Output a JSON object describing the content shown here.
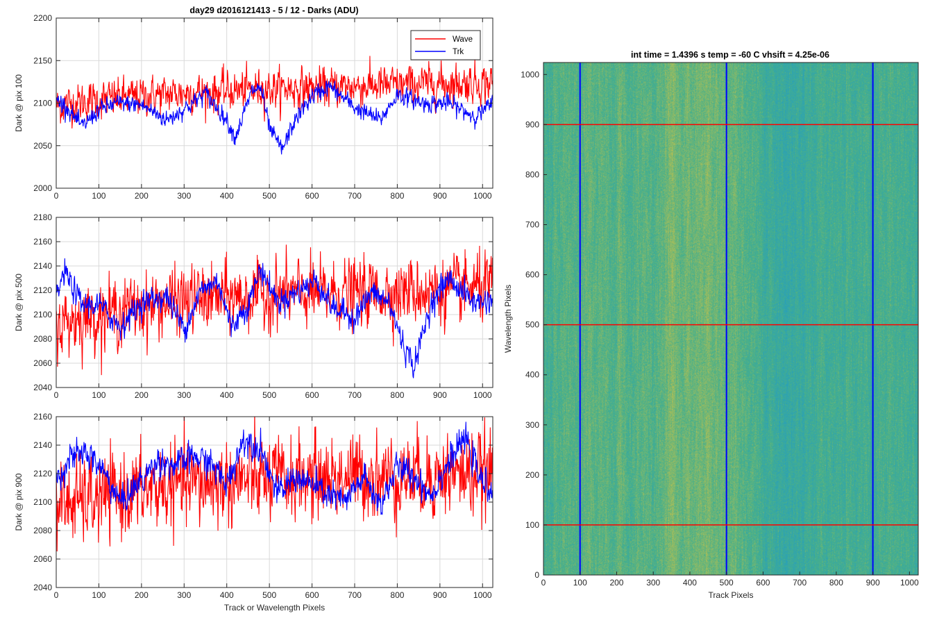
{
  "figure": {
    "title": "day29 d2016121413 - 5 / 12 - Darks (ADU)",
    "heatmap_title": "int time = 1.4396 s    temp = -60 C    vhsift = 4.25e-06"
  },
  "colors": {
    "wave": "#ff0000",
    "trk": "#0000ff",
    "grid": "#d9d9d9",
    "heat_low": "#1f9bc8",
    "heat_mid": "#48b08a",
    "heat_high": "#c6c24a"
  },
  "chart_data": [
    {
      "type": "line",
      "id": "pix100",
      "ylabel": "Dark @ pix 100",
      "xlabel": "",
      "xlim": [
        0,
        1024
      ],
      "ylim": [
        2000,
        2200
      ],
      "yticks": [
        2000,
        2050,
        2100,
        2150,
        2200
      ],
      "xticks": [
        0,
        100,
        200,
        300,
        400,
        500,
        600,
        700,
        800,
        900,
        1000
      ],
      "legend": {
        "placement": "top-right",
        "entries": [
          "Wave",
          "Trk"
        ]
      },
      "series": [
        {
          "name": "Wave",
          "color": "#ff0000",
          "x": [
            0,
            100,
            200,
            300,
            400,
            500,
            600,
            700,
            800,
            900,
            1000,
            1024
          ],
          "mean": [
            2097,
            2104,
            2108,
            2112,
            2114,
            2117,
            2118,
            2120,
            2121,
            2123,
            2124,
            2124
          ],
          "noise": 11,
          "samples": 1024
        },
        {
          "name": "Trk",
          "color": "#0000ff",
          "x": [
            0,
            20,
            60,
            100,
            140,
            200,
            260,
            320,
            350,
            400,
            420,
            460,
            480,
            500,
            530,
            560,
            600,
            640,
            700,
            760,
            800,
            860,
            920,
            980,
            1000,
            1024
          ],
          "mean": [
            2104,
            2098,
            2072,
            2092,
            2100,
            2098,
            2080,
            2100,
            2112,
            2080,
            2060,
            2115,
            2118,
            2070,
            2045,
            2080,
            2108,
            2120,
            2095,
            2080,
            2110,
            2100,
            2100,
            2085,
            2090,
            2100
          ],
          "noise": 5,
          "samples": 1024
        }
      ]
    },
    {
      "type": "line",
      "id": "pix500",
      "ylabel": "Dark @ pix 500",
      "xlabel": "",
      "xlim": [
        0,
        1024
      ],
      "ylim": [
        2040,
        2180
      ],
      "yticks": [
        2040,
        2060,
        2080,
        2100,
        2120,
        2140,
        2160,
        2180
      ],
      "xticks": [
        0,
        100,
        200,
        300,
        400,
        500,
        600,
        700,
        800,
        900,
        1000
      ],
      "series": [
        {
          "name": "Wave",
          "color": "#ff0000",
          "x": [
            0,
            100,
            200,
            300,
            400,
            500,
            600,
            700,
            800,
            900,
            1000,
            1024
          ],
          "mean": [
            2092,
            2100,
            2106,
            2112,
            2114,
            2116,
            2117,
            2118,
            2119,
            2120,
            2122,
            2122
          ],
          "noise": 13,
          "samples": 1024
        },
        {
          "name": "Trk",
          "color": "#0000ff",
          "x": [
            0,
            20,
            60,
            100,
            150,
            200,
            260,
            300,
            340,
            380,
            410,
            450,
            480,
            520,
            560,
            610,
            650,
            700,
            740,
            780,
            820,
            840,
            880,
            920,
            980,
            1024
          ],
          "mean": [
            2115,
            2135,
            2108,
            2108,
            2090,
            2110,
            2115,
            2088,
            2120,
            2128,
            2090,
            2108,
            2138,
            2110,
            2118,
            2128,
            2105,
            2098,
            2118,
            2110,
            2070,
            2058,
            2110,
            2130,
            2110,
            2112
          ],
          "noise": 5,
          "samples": 1024
        }
      ]
    },
    {
      "type": "line",
      "id": "pix900",
      "ylabel": "Dark @ pix 900",
      "xlabel": "Track or Wavelength Pixels",
      "xlim": [
        0,
        1024
      ],
      "ylim": [
        2040,
        2160
      ],
      "yticks": [
        2040,
        2060,
        2080,
        2100,
        2120,
        2140,
        2160
      ],
      "xticks": [
        0,
        100,
        200,
        300,
        400,
        500,
        600,
        700,
        800,
        900,
        1000
      ],
      "series": [
        {
          "name": "Wave",
          "color": "#ff0000",
          "x": [
            0,
            100,
            200,
            300,
            400,
            500,
            600,
            700,
            800,
            900,
            1000,
            1024
          ],
          "mean": [
            2098,
            2102,
            2108,
            2112,
            2114,
            2116,
            2117,
            2118,
            2118,
            2119,
            2120,
            2120
          ],
          "noise": 14,
          "samples": 1024
        },
        {
          "name": "Trk",
          "color": "#0000ff",
          "x": [
            0,
            30,
            70,
            110,
            150,
            200,
            240,
            280,
            320,
            360,
            400,
            440,
            480,
            520,
            560,
            600,
            640,
            680,
            720,
            760,
            800,
            840,
            880,
            920,
            960,
            1000,
            1024
          ],
          "mean": [
            2115,
            2130,
            2135,
            2122,
            2100,
            2115,
            2130,
            2125,
            2132,
            2128,
            2112,
            2145,
            2138,
            2105,
            2118,
            2112,
            2105,
            2100,
            2118,
            2098,
            2125,
            2118,
            2105,
            2128,
            2145,
            2112,
            2110
          ],
          "noise": 5,
          "samples": 1024
        }
      ]
    },
    {
      "type": "heatmap",
      "id": "darkframe",
      "title": "int time = 1.4396 s    temp = -60 C    vhsift = 4.25e-06",
      "xlabel": "Track Pixels",
      "ylabel": "Wavelength Pixels",
      "xlim": [
        0,
        1024
      ],
      "ylim": [
        0,
        1024
      ],
      "xticks": [
        0,
        100,
        200,
        300,
        400,
        500,
        600,
        700,
        800,
        900,
        1000
      ],
      "yticks": [
        0,
        100,
        200,
        300,
        400,
        500,
        600,
        700,
        800,
        900,
        1000
      ],
      "vertical_markers": {
        "color": "#0000ff",
        "x": [
          100,
          500,
          900
        ]
      },
      "horizontal_markers": {
        "color": "#ff0000",
        "y": [
          100,
          500,
          900
        ]
      }
    }
  ]
}
